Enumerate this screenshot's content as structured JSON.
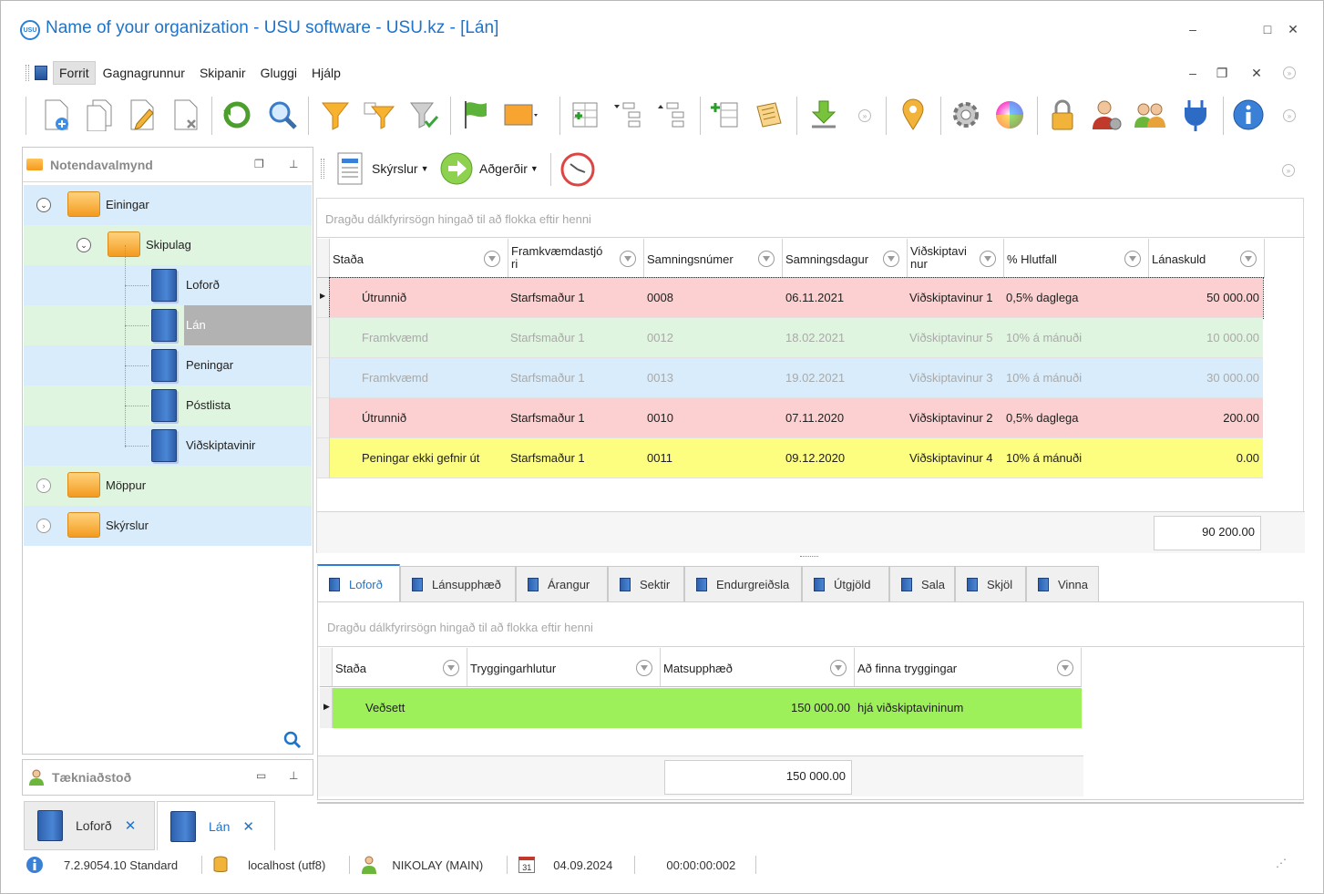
{
  "window": {
    "title": "Name of your organization - USU software - USU.kz - [Lán]",
    "logo_text": "USU"
  },
  "menu": [
    "Forrit",
    "Gagnagrunnur",
    "Skipanir",
    "Gluggi",
    "Hjálp"
  ],
  "left_panel": {
    "title": "Notendavalmynd",
    "tree": [
      {
        "label": "Einingar"
      },
      {
        "label": "Skipulag"
      },
      {
        "label": "Loforð"
      },
      {
        "label": "Lán"
      },
      {
        "label": "Peningar"
      },
      {
        "label": "Póstlista"
      },
      {
        "label": "Viðskiptavinir"
      },
      {
        "label": "Möppur"
      },
      {
        "label": "Skýrslur"
      }
    ]
  },
  "tech_panel": {
    "title": "Tækniaðstoð"
  },
  "main_toolbar": {
    "reports": "Skýrslur",
    "actions": "Aðgerðir"
  },
  "grid": {
    "group_hint": "Dragðu dálkfyrirsögn hingað til að flokka eftir henni",
    "columns": [
      "Staða",
      "Framkvæmdastjó ri",
      "Samningsnúmer",
      "Samningsdagur",
      "Viðskiptavi nur",
      "% Hlutfall",
      "Lánaskuld"
    ],
    "rows": [
      {
        "status": "Útrunnið",
        "manager": "Starfsmaður 1",
        "number": "0008",
        "date": "06.11.2021",
        "client": "Viðskiptavinur 1",
        "rate": "0,5% daglega",
        "debt": "50 000.00",
        "bg": "#fcd0d0",
        "fg": "#1e1e1e"
      },
      {
        "status": "Framkvæmd",
        "manager": "Starfsmaður 1",
        "number": "0012",
        "date": "18.02.2021",
        "client": "Viðskiptavinur 5",
        "rate": "10% á mánuði",
        "debt": "10 000.00",
        "bg": "#dff5df",
        "fg": "#a9a9a9"
      },
      {
        "status": "Framkvæmd",
        "manager": "Starfsmaður 1",
        "number": "0013",
        "date": "19.02.2021",
        "client": "Viðskiptavinur 3",
        "rate": "10% á mánuði",
        "debt": "30 000.00",
        "bg": "#d8ecfb",
        "fg": "#a9a9a9"
      },
      {
        "status": "Útrunnið",
        "manager": "Starfsmaður 1",
        "number": "0010",
        "date": "07.11.2020",
        "client": "Viðskiptavinur 2",
        "rate": "0,5% daglega",
        "debt": "200.00",
        "bg": "#fcd0d0",
        "fg": "#1e1e1e"
      },
      {
        "status": "Peningar ekki gefnir út",
        "manager": "Starfsmaður 1",
        "number": "0011",
        "date": "09.12.2020",
        "client": "Viðskiptavinur 4",
        "rate": "10% á mánuði",
        "debt": "0.00",
        "bg": "#fdfd80",
        "fg": "#1e1e1e"
      }
    ],
    "total": "90 200.00"
  },
  "tabs": [
    "Loforð",
    "Lánsupphæð",
    "Árangur",
    "Sektir",
    "Endurgreiðsla",
    "Útgjöld",
    "Sala",
    "Skjöl",
    "Vinna"
  ],
  "detail": {
    "group_hint": "Dragðu dálkfyrirsögn hingað til að flokka eftir henni",
    "columns": [
      "Staða",
      "Tryggingarhlutur",
      "Matsupphæð",
      "Að finna tryggingar"
    ],
    "row": {
      "status": "Veðsett",
      "item": "",
      "amount": "150 000.00",
      "where": "hjá viðskiptavininum"
    },
    "total": "150 000.00"
  },
  "doc_tabs": [
    "Loforð",
    "Lán"
  ],
  "status": {
    "version": "7.2.9054.10 Standard",
    "db": "localhost (utf8)",
    "user": "NIKOLAY (MAIN)",
    "calendar_day": "31",
    "date": "04.09.2024",
    "timer": "00:00:00:002"
  },
  "colors": {
    "accent": "#1f73c9",
    "row_expired": "#fcd0d0",
    "row_done_green": "#dff5df",
    "row_done_blue": "#d8ecfb",
    "row_not_issued": "#fdfd80",
    "detail_row": "#9ef05a"
  }
}
